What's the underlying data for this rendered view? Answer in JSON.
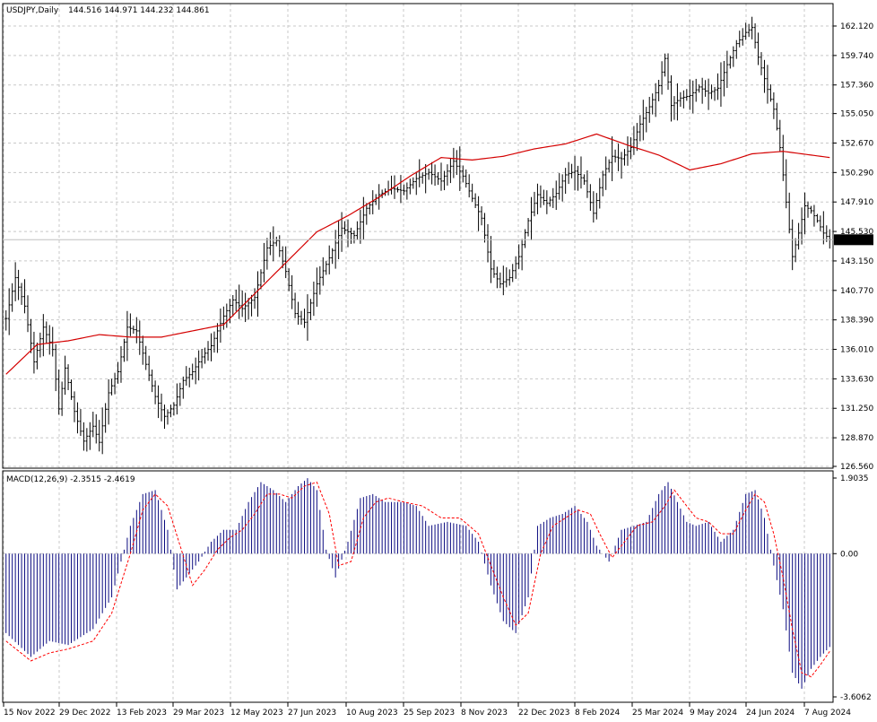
{
  "chart_data": [
    {
      "type": "candlestick",
      "symbol_header": "USDJPY,Daily",
      "ohlc_header": "144.516 144.971 144.232 144.861",
      "current_price_label": "144.861",
      "current_price": 144.861,
      "ylim": [
        126.56,
        162.12
      ],
      "grid": true,
      "y_ticks": [
        "162.120",
        "159.740",
        "157.360",
        "155.050",
        "152.670",
        "150.290",
        "147.910",
        "145.530",
        "143.150",
        "140.770",
        "138.390",
        "136.010",
        "133.630",
        "131.250",
        "128.870",
        "126.560"
      ],
      "y_tick_values": [
        162.12,
        159.74,
        157.36,
        155.05,
        152.67,
        150.29,
        147.91,
        145.53,
        143.15,
        140.77,
        138.39,
        136.01,
        133.63,
        131.25,
        128.87,
        126.56
      ],
      "x_ticks": [
        "15 Nov 2022",
        "29 Dec 2022",
        "13 Feb 2023",
        "29 Mar 2023",
        "12 May 2023",
        "27 Jun 2023",
        "10 Aug 2023",
        "25 Sep 2023",
        "8 Nov 2023",
        "22 Dec 2023",
        "8 Feb 2024",
        "25 Mar 2024",
        "9 May 2024",
        "24 Jun 2024",
        "7 Aug 2024"
      ],
      "price_path": [
        [
          0,
          138.5
        ],
        [
          3,
          141.8
        ],
        [
          6,
          139.5
        ],
        [
          9,
          135.0
        ],
        [
          12,
          137.8
        ],
        [
          15,
          136.0
        ],
        [
          17,
          131.2
        ],
        [
          19,
          134.5
        ],
        [
          22,
          131.0
        ],
        [
          25,
          128.6
        ],
        [
          28,
          129.8
        ],
        [
          30,
          128.5
        ],
        [
          33,
          132.5
        ],
        [
          36,
          134.2
        ],
        [
          39,
          137.8
        ],
        [
          42,
          137.5
        ],
        [
          45,
          134.8
        ],
        [
          48,
          132.2
        ],
        [
          51,
          130.6
        ],
        [
          54,
          131.5
        ],
        [
          57,
          133.5
        ],
        [
          60,
          134.2
        ],
        [
          63,
          135.4
        ],
        [
          66,
          136.3
        ],
        [
          70,
          138.7
        ],
        [
          73,
          140.0
        ],
        [
          76,
          139.3
        ],
        [
          80,
          140.2
        ],
        [
          84,
          144.2
        ],
        [
          87,
          144.8
        ],
        [
          90,
          142.3
        ],
        [
          93,
          138.9
        ],
        [
          96,
          138.2
        ],
        [
          100,
          141.3
        ],
        [
          104,
          143.4
        ],
        [
          108,
          145.8
        ],
        [
          112,
          145.2
        ],
        [
          116,
          147.4
        ],
        [
          120,
          148.5
        ],
        [
          124,
          149.0
        ],
        [
          128,
          148.8
        ],
        [
          132,
          149.8
        ],
        [
          136,
          150.3
        ],
        [
          140,
          149.6
        ],
        [
          144,
          151.2
        ],
        [
          147,
          150.0
        ],
        [
          150,
          148.2
        ],
        [
          153,
          146.6
        ],
        [
          156,
          142.5
        ],
        [
          159,
          141.3
        ],
        [
          162,
          141.8
        ],
        [
          165,
          143.5
        ],
        [
          168,
          146.4
        ],
        [
          171,
          148.5
        ],
        [
          174,
          147.8
        ],
        [
          177,
          148.6
        ],
        [
          180,
          150.1
        ],
        [
          183,
          150.4
        ],
        [
          186,
          149.6
        ],
        [
          189,
          147.0
        ],
        [
          192,
          150.1
        ],
        [
          195,
          151.6
        ],
        [
          198,
          151.4
        ],
        [
          201,
          152.3
        ],
        [
          204,
          154.2
        ],
        [
          207,
          155.6
        ],
        [
          210,
          157.3
        ],
        [
          212,
          159.5
        ],
        [
          214,
          155.7
        ],
        [
          217,
          156.3
        ],
        [
          220,
          156.5
        ],
        [
          223,
          157.2
        ],
        [
          226,
          156.7
        ],
        [
          229,
          157.1
        ],
        [
          232,
          159.0
        ],
        [
          235,
          160.7
        ],
        [
          238,
          161.6
        ],
        [
          240,
          162.0
        ],
        [
          242,
          159.6
        ],
        [
          245,
          157.0
        ],
        [
          247,
          155.4
        ],
        [
          249,
          152.3
        ],
        [
          251,
          147.9
        ],
        [
          253,
          143.5
        ],
        [
          255,
          145.4
        ],
        [
          257,
          147.6
        ],
        [
          259,
          147.2
        ],
        [
          261,
          146.4
        ],
        [
          263,
          145.4
        ],
        [
          265,
          144.86
        ]
      ],
      "overlay_series": [
        {
          "kind": "moving-average",
          "color": "#d40000",
          "values": [
            [
              0,
              134.0
            ],
            [
              10,
              136.4
            ],
            [
              20,
              136.7
            ],
            [
              30,
              137.2
            ],
            [
              40,
              137.0
            ],
            [
              50,
              137.0
            ],
            [
              60,
              137.5
            ],
            [
              70,
              138.0
            ],
            [
              80,
              140.5
            ],
            [
              90,
              143.0
            ],
            [
              100,
              145.5
            ],
            [
              110,
              146.8
            ],
            [
              120,
              148.3
            ],
            [
              130,
              150.0
            ],
            [
              140,
              151.5
            ],
            [
              150,
              151.3
            ],
            [
              160,
              151.6
            ],
            [
              170,
              152.2
            ],
            [
              180,
              152.6
            ],
            [
              190,
              153.4
            ],
            [
              200,
              152.5
            ],
            [
              210,
              151.7
            ],
            [
              220,
              150.5
            ],
            [
              230,
              151.0
            ],
            [
              240,
              151.8
            ],
            [
              250,
              152.0
            ],
            [
              265,
              151.5
            ]
          ]
        }
      ]
    },
    {
      "type": "bar",
      "indicator_header": "MACD(12,26,9) -2.3515 -2.4619",
      "macd_value": -2.3515,
      "signal_value": -2.4619,
      "ylim": [
        -3.6062,
        1.9035
      ],
      "y_ticks": [
        "1.9035",
        "0.00",
        "-3.6062"
      ],
      "y_tick_values": [
        1.9035,
        0.0,
        -3.6062
      ],
      "histogram_color": "#0a0a80",
      "signal_color": "#ff0000",
      "macd_path": [
        [
          0,
          -2.0
        ],
        [
          8,
          -2.6
        ],
        [
          14,
          -2.2
        ],
        [
          20,
          -2.3
        ],
        [
          28,
          -1.9
        ],
        [
          34,
          -1.1
        ],
        [
          40,
          0.7
        ],
        [
          44,
          1.5
        ],
        [
          48,
          1.6
        ],
        [
          52,
          0.6
        ],
        [
          55,
          -0.9
        ],
        [
          58,
          -0.6
        ],
        [
          62,
          -0.2
        ],
        [
          66,
          0.3
        ],
        [
          70,
          0.6
        ],
        [
          74,
          0.6
        ],
        [
          78,
          1.3
        ],
        [
          82,
          1.8
        ],
        [
          86,
          1.6
        ],
        [
          90,
          1.3
        ],
        [
          94,
          1.7
        ],
        [
          97,
          1.9
        ],
        [
          100,
          1.6
        ],
        [
          103,
          0.1
        ],
        [
          106,
          -0.6
        ],
        [
          110,
          0.3
        ],
        [
          114,
          1.4
        ],
        [
          118,
          1.5
        ],
        [
          122,
          1.3
        ],
        [
          128,
          1.3
        ],
        [
          132,
          1.2
        ],
        [
          136,
          0.7
        ],
        [
          142,
          0.8
        ],
        [
          148,
          0.7
        ],
        [
          152,
          0.3
        ],
        [
          156,
          -0.8
        ],
        [
          160,
          -1.7
        ],
        [
          164,
          -2.0
        ],
        [
          168,
          -1.1
        ],
        [
          171,
          0.7
        ],
        [
          175,
          0.9
        ],
        [
          179,
          1.0
        ],
        [
          183,
          1.2
        ],
        [
          187,
          0.8
        ],
        [
          190,
          0.2
        ],
        [
          194,
          -0.2
        ],
        [
          198,
          0.6
        ],
        [
          202,
          0.7
        ],
        [
          206,
          0.8
        ],
        [
          210,
          1.5
        ],
        [
          213,
          1.8
        ],
        [
          216,
          1.3
        ],
        [
          219,
          0.8
        ],
        [
          222,
          0.7
        ],
        [
          226,
          0.8
        ],
        [
          230,
          0.3
        ],
        [
          234,
          0.6
        ],
        [
          238,
          1.5
        ],
        [
          241,
          1.6
        ],
        [
          244,
          0.9
        ],
        [
          247,
          -0.3
        ],
        [
          250,
          -1.4
        ],
        [
          253,
          -3.0
        ],
        [
          256,
          -3.4
        ],
        [
          259,
          -2.9
        ],
        [
          262,
          -2.6
        ],
        [
          265,
          -2.35
        ]
      ],
      "signal_path": [
        [
          0,
          -2.2
        ],
        [
          8,
          -2.7
        ],
        [
          14,
          -2.5
        ],
        [
          20,
          -2.4
        ],
        [
          28,
          -2.2
        ],
        [
          34,
          -1.5
        ],
        [
          40,
          0.0
        ],
        [
          44,
          1.1
        ],
        [
          48,
          1.5
        ],
        [
          52,
          1.2
        ],
        [
          56,
          0.2
        ],
        [
          60,
          -0.8
        ],
        [
          64,
          -0.4
        ],
        [
          68,
          0.1
        ],
        [
          72,
          0.4
        ],
        [
          76,
          0.6
        ],
        [
          80,
          1.0
        ],
        [
          84,
          1.5
        ],
        [
          88,
          1.5
        ],
        [
          92,
          1.4
        ],
        [
          96,
          1.7
        ],
        [
          100,
          1.8
        ],
        [
          104,
          1.0
        ],
        [
          107,
          -0.3
        ],
        [
          111,
          -0.2
        ],
        [
          115,
          0.9
        ],
        [
          119,
          1.3
        ],
        [
          123,
          1.4
        ],
        [
          128,
          1.3
        ],
        [
          134,
          1.2
        ],
        [
          140,
          0.9
        ],
        [
          146,
          0.9
        ],
        [
          152,
          0.5
        ],
        [
          156,
          -0.3
        ],
        [
          160,
          -1.1
        ],
        [
          164,
          -1.8
        ],
        [
          168,
          -1.5
        ],
        [
          172,
          0.0
        ],
        [
          176,
          0.7
        ],
        [
          180,
          0.9
        ],
        [
          184,
          1.1
        ],
        [
          188,
          1.0
        ],
        [
          191,
          0.5
        ],
        [
          195,
          -0.1
        ],
        [
          199,
          0.3
        ],
        [
          203,
          0.7
        ],
        [
          208,
          0.8
        ],
        [
          212,
          1.2
        ],
        [
          215,
          1.6
        ],
        [
          219,
          1.2
        ],
        [
          222,
          0.9
        ],
        [
          226,
          0.8
        ],
        [
          230,
          0.5
        ],
        [
          234,
          0.5
        ],
        [
          238,
          1.1
        ],
        [
          241,
          1.5
        ],
        [
          244,
          1.3
        ],
        [
          247,
          0.5
        ],
        [
          250,
          -0.6
        ],
        [
          253,
          -1.9
        ],
        [
          256,
          -3.0
        ],
        [
          259,
          -3.1
        ],
        [
          262,
          -2.8
        ],
        [
          265,
          -2.46
        ]
      ]
    }
  ]
}
